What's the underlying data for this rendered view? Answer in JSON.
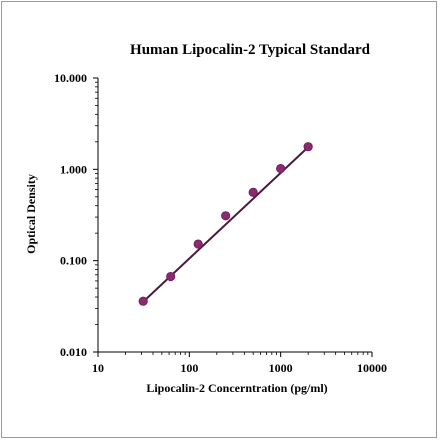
{
  "chart_data": {
    "type": "scatter",
    "title": "Human Lipocalin-2 Typical Standard",
    "xlabel": "Lipocalin-2 Concerntration (pg/ml)",
    "ylabel": "Optical Density",
    "x_scale": "log",
    "y_scale": "log",
    "xlim": [
      10,
      10000
    ],
    "ylim": [
      0.01,
      10
    ],
    "x_ticks": [
      10,
      100,
      1000,
      10000
    ],
    "x_tick_labels": [
      "10",
      "100",
      "1000",
      "10000"
    ],
    "y_ticks": [
      0.01,
      0.1,
      1,
      10
    ],
    "y_tick_labels": [
      "0.010",
      "0.100",
      "1.000",
      "10.000"
    ],
    "grid": false,
    "legend": "none",
    "marker_color": "#8b2a6e",
    "line_color": "#4a1a40",
    "series": [
      {
        "x": [
          31.25,
          62.5,
          125,
          250,
          500,
          1000,
          2000
        ],
        "y": [
          0.036,
          0.067,
          0.152,
          0.31,
          0.56,
          1.02,
          1.77
        ]
      }
    ],
    "fit_line": {
      "x": [
        31.25,
        2000
      ],
      "y": [
        0.0355,
        1.75
      ]
    }
  }
}
